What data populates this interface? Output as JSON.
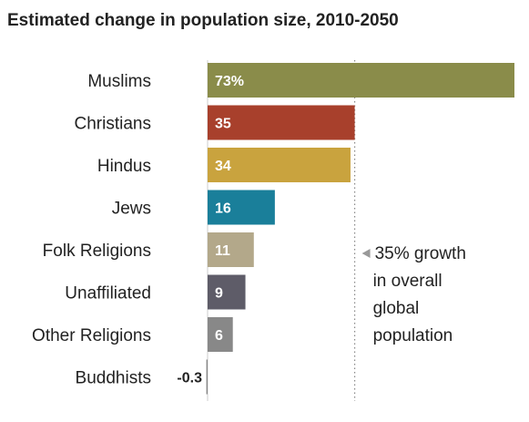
{
  "chart_data": {
    "type": "bar",
    "orientation": "horizontal",
    "title": "Estimated change in population size, 2010-2050",
    "categories": [
      "Muslims",
      "Christians",
      "Hindus",
      "Jews",
      "Folk Religions",
      "Unaffiliated",
      "Other Religions",
      "Buddhists"
    ],
    "values": [
      73,
      35,
      34,
      16,
      11,
      9,
      6,
      -0.3
    ],
    "value_labels": [
      "73%",
      "35",
      "34",
      "16",
      "11",
      "9",
      "6",
      "-0.3"
    ],
    "colors": [
      "#8a8c4a",
      "#a8402c",
      "#c9a33e",
      "#1a7f9a",
      "#b3a88a",
      "#5e5c68",
      "#888888",
      "#888888"
    ],
    "reference_line": {
      "value": 35,
      "style": "dotted"
    },
    "annotation": {
      "lines": [
        "35% growth",
        "in overall",
        "global",
        "population"
      ]
    },
    "grid": false,
    "legend": "none"
  }
}
